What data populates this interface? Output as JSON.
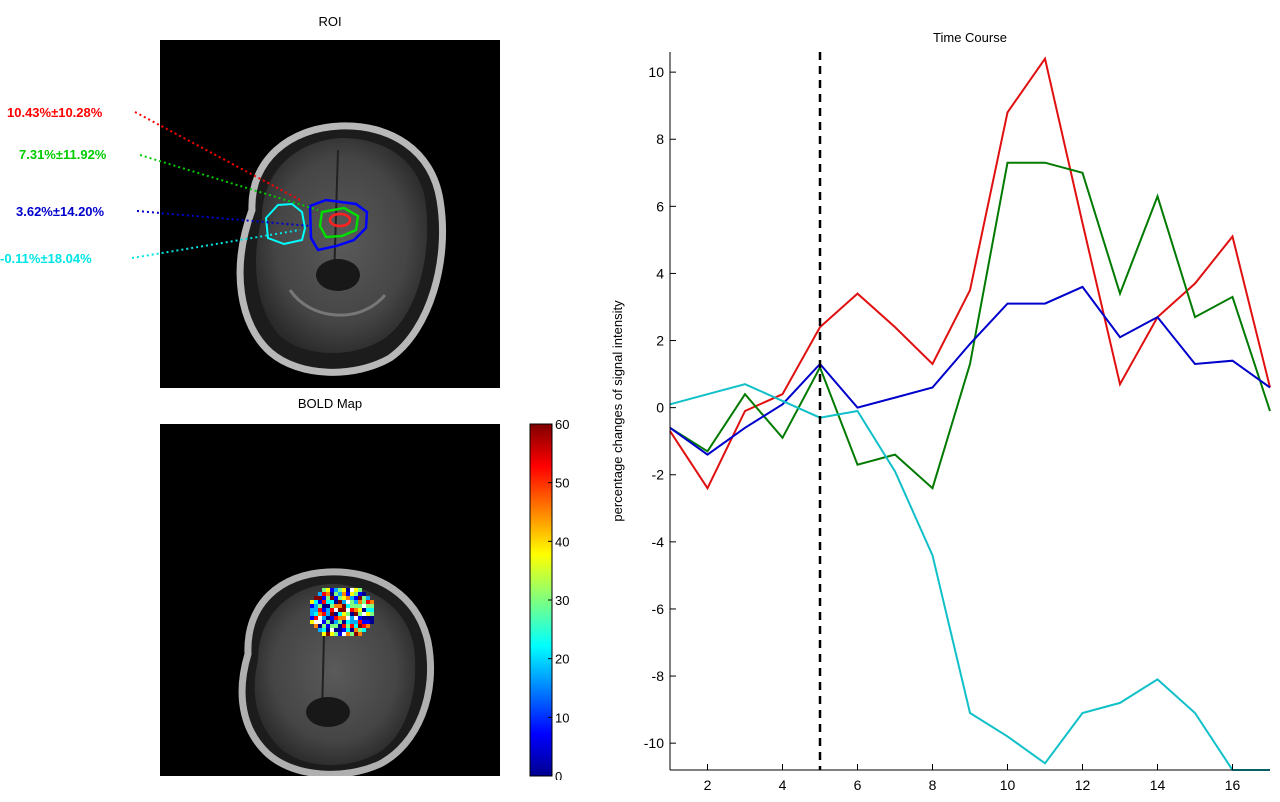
{
  "roi_panel": {
    "title": "ROI",
    "labels": [
      {
        "text": "10.43%±10.28%",
        "color": "#ff0000"
      },
      {
        "text": "7.31%±11.92%",
        "color": "#00cc00"
      },
      {
        "text": "3.62%±14.20%",
        "color": "#0000cc"
      },
      {
        "text": "-0.11%±18.04%",
        "color": "#00e5e5"
      }
    ]
  },
  "bold_panel": {
    "title": "BOLD Map",
    "colorbar": {
      "ticks": [
        "0",
        "10",
        "20",
        "30",
        "40",
        "50",
        "60"
      ],
      "range": [
        0,
        60
      ],
      "colormap": "jet"
    }
  },
  "chart_data": {
    "type": "line",
    "title": "Time Course",
    "xlabel": "",
    "ylabel": "percentage changes of signal intensity",
    "xlim": [
      1,
      17
    ],
    "ylim": [
      -10.8,
      10.6
    ],
    "xticks": [
      2,
      4,
      6,
      8,
      10,
      12,
      14,
      16
    ],
    "yticks": [
      -10,
      -8,
      -6,
      -4,
      -2,
      0,
      2,
      4,
      6,
      8,
      10
    ],
    "vline": {
      "x": 5,
      "style": "dashed",
      "color": "#000000"
    },
    "x": [
      1,
      2,
      3,
      4,
      5,
      6,
      7,
      8,
      9,
      10,
      11,
      12,
      13,
      14,
      15,
      16,
      17
    ],
    "series": [
      {
        "color": "#e01010",
        "values": [
          -0.7,
          -2.4,
          -0.1,
          0.4,
          2.4,
          3.4,
          2.4,
          1.3,
          3.5,
          8.8,
          10.4,
          5.5,
          0.7,
          2.7,
          3.7,
          5.1,
          0.6
        ]
      },
      {
        "color": "#007a00",
        "values": [
          -0.6,
          -1.3,
          0.4,
          -0.9,
          1.2,
          -1.7,
          -1.4,
          -2.4,
          1.3,
          7.3,
          7.3,
          7.0,
          3.4,
          6.3,
          2.7,
          3.3,
          -0.1
        ]
      },
      {
        "color": "#0000cc",
        "values": [
          -0.6,
          -1.4,
          -0.6,
          0.1,
          1.3,
          0.0,
          0.3,
          0.6,
          1.9,
          3.1,
          3.1,
          3.6,
          2.1,
          2.7,
          1.3,
          1.4,
          0.6
        ]
      },
      {
        "color": "#10c0c8",
        "values": [
          0.1,
          0.4,
          0.7,
          0.2,
          -0.3,
          -0.1,
          -1.9,
          -4.4,
          -9.1,
          -9.8,
          -10.6,
          -9.1,
          -8.8,
          -8.1,
          -9.1,
          -10.8,
          -10.8
        ]
      }
    ]
  }
}
